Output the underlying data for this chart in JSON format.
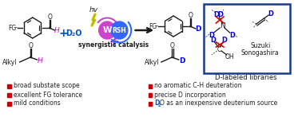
{
  "bg_color": "#ffffff",
  "bullet_left": [
    "broad substate scope",
    "excellent FG tolerance",
    "mild conditions"
  ],
  "bullet_right": [
    "no aromatic C-H deuteration",
    "precise D incorporation",
    "D₂O as an inexpensive deuterium source"
  ],
  "bullet_color": "#cc0000",
  "text_color": "#222222",
  "box_color": "#1a3a8a",
  "D_color": "#0000ee",
  "H_color": "#cc00cc",
  "D2O_color": "#0055cc",
  "plus_color": "#0055cc",
  "W_color": "#cc44cc",
  "RSH_color": "#3366ff",
  "label_synergistic": "synergistic catalysis",
  "label_hv": "hv",
  "label_D_libraries": "D-labeled libraries",
  "label_Suzuki": "Suzuki",
  "label_Sonogashira": "Sonogashira",
  "label_FG": "FG",
  "label_Alkyl": "Alkyl",
  "label_W": "W",
  "label_RSH": "RSH",
  "label_D2O": "D₂O"
}
